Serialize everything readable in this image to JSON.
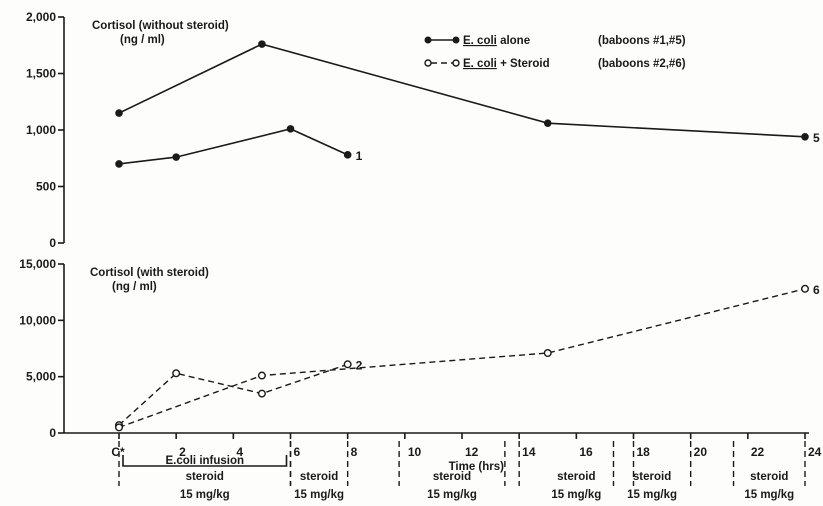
{
  "chart_data": [
    {
      "type": "line",
      "title": "Cortisol (without steroid)",
      "subtitle": "(ng / ml)",
      "ylim": [
        0,
        2000
      ],
      "y_ticks": [
        "0",
        "500",
        "1,000",
        "1,500",
        "2,000"
      ],
      "legend": [
        {
          "marker": "filled",
          "label_prefix": "",
          "label_underlined": "E. coli",
          "label_rest": " alone",
          "note": "(baboons #1,#5)"
        },
        {
          "marker": "open",
          "label_prefix": "",
          "label_underlined": "E. coli",
          "label_rest": " + Steroid",
          "note": "(baboons #2,#6)"
        }
      ],
      "series": [
        {
          "name": "5",
          "style": "solid",
          "marker": "filled",
          "x": [
            0,
            5,
            15,
            24
          ],
          "y": [
            1150,
            1760,
            1060,
            940
          ]
        },
        {
          "name": "1",
          "style": "solid",
          "marker": "filled",
          "x": [
            0,
            2,
            6,
            8
          ],
          "y": [
            700,
            760,
            1010,
            780
          ]
        }
      ]
    },
    {
      "type": "line",
      "title": "Cortisol (with steroid)",
      "subtitle": "(ng / ml)",
      "ylim": [
        0,
        15000
      ],
      "y_ticks": [
        "0",
        "5,000",
        "10,000",
        "15,000"
      ],
      "series": [
        {
          "name": "2",
          "style": "dashed",
          "marker": "open",
          "x": [
            0,
            2,
            5,
            8
          ],
          "y": [
            700,
            5300,
            3500,
            6100
          ]
        },
        {
          "name": "6",
          "style": "dashed",
          "marker": "open",
          "x": [
            0,
            5,
            15,
            24
          ],
          "y": [
            500,
            5100,
            7100,
            12800
          ]
        }
      ]
    }
  ],
  "x_axis": {
    "label": "Time (hrs)",
    "xlim": [
      -1,
      24
    ],
    "ticks": [
      {
        "x": 0,
        "label": "C*"
      },
      {
        "x": 2,
        "label": "2"
      },
      {
        "x": 4,
        "label": "4"
      },
      {
        "x": 6,
        "label": "6"
      },
      {
        "x": 8,
        "label": "8"
      },
      {
        "x": 10,
        "label": "10"
      },
      {
        "x": 12,
        "label": "12"
      },
      {
        "x": 14,
        "label": "14"
      },
      {
        "x": 16,
        "label": "16"
      },
      {
        "x": 18,
        "label": "18"
      },
      {
        "x": 20,
        "label": "20"
      },
      {
        "x": 22,
        "label": "22"
      },
      {
        "x": 24,
        "label": "24"
      }
    ]
  },
  "infusion": {
    "label": "E.coli infusion",
    "start": 0,
    "end": 6
  },
  "steroid_doses": [
    {
      "start": 0,
      "end": 6,
      "label": "steroid",
      "dose": "15 mg/kg"
    },
    {
      "start": 6,
      "end": 8,
      "label": "steroid",
      "dose": "15 mg/kg"
    },
    {
      "start": 9.8,
      "end": 13.5,
      "label": "steroid",
      "dose": "15 mg/kg"
    },
    {
      "start": 14,
      "end": 18,
      "label": "steroid",
      "dose": "15 mg/kg"
    },
    {
      "start": 17.3,
      "end": 20,
      "label": "steroid",
      "dose": "15 mg/kg"
    },
    {
      "start": 21.5,
      "end": 24,
      "label": "steroid",
      "dose": "15 mg/kg"
    }
  ]
}
